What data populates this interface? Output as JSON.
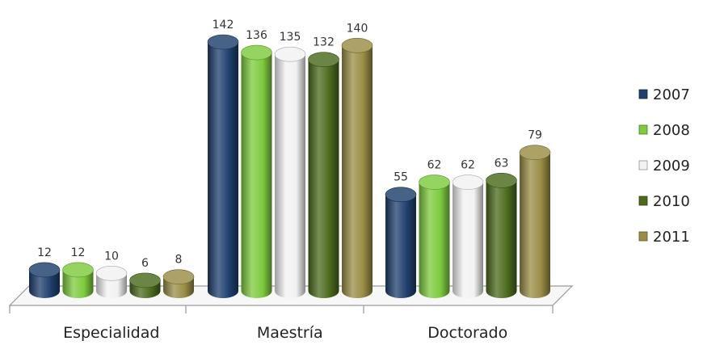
{
  "chart_data": {
    "type": "bar",
    "style": "3d-cylinder",
    "categories": [
      "Especialidad",
      "Maestría",
      "Doctorado"
    ],
    "series": [
      {
        "name": "2007",
        "color": "#1f3f6d",
        "values": [
          12,
          142,
          55
        ]
      },
      {
        "name": "2008",
        "color": "#7ecb3d",
        "values": [
          12,
          136,
          62
        ]
      },
      {
        "name": "2009",
        "color": "#f2f2f2",
        "values": [
          10,
          135,
          62
        ]
      },
      {
        "name": "2010",
        "color": "#4b6a1c",
        "values": [
          6,
          132,
          63
        ]
      },
      {
        "name": "2011",
        "color": "#9a8d45",
        "values": [
          8,
          140,
          79
        ]
      }
    ],
    "title": "",
    "xlabel": "",
    "ylabel": "",
    "ylim": [
      0,
      150
    ],
    "grid": false,
    "legend_position": "right",
    "data_labels": true
  }
}
